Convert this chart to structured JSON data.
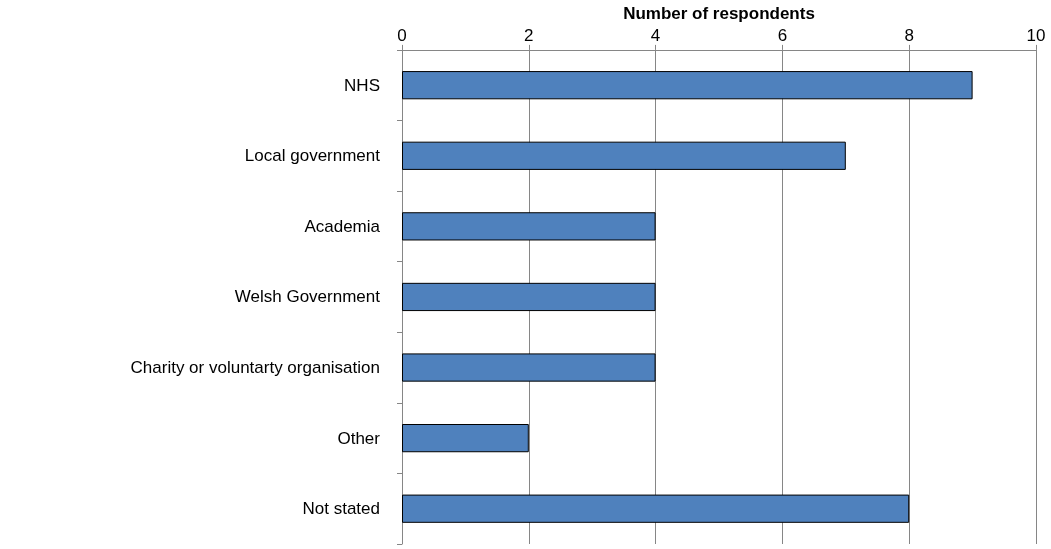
{
  "chart_data": {
    "type": "bar",
    "orientation": "horizontal",
    "xlabel": "Number of respondents",
    "categories": [
      "NHS",
      "Local government",
      "Academia",
      "Welsh Government",
      "Charity or voluntarty organisation",
      "Other",
      "Not stated"
    ],
    "values": [
      9,
      7,
      4,
      4,
      4,
      2,
      8
    ],
    "color": "#4f81bd",
    "xlim": [
      0,
      10
    ],
    "xticks": [
      0,
      2,
      4,
      6,
      8,
      10
    ],
    "grid": "x"
  }
}
